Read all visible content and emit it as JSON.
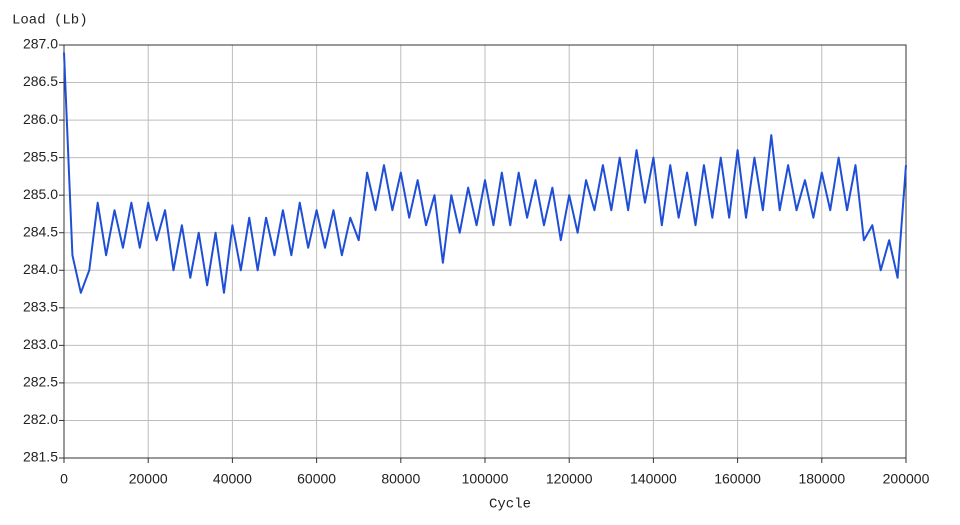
{
  "chart_data": {
    "type": "line",
    "ylabel": "Load (Lb)",
    "xlabel": "Cycle",
    "x": [
      0,
      2000,
      4000,
      6000,
      8000,
      10000,
      12000,
      14000,
      16000,
      18000,
      20000,
      22000,
      24000,
      26000,
      28000,
      30000,
      32000,
      34000,
      36000,
      38000,
      40000,
      42000,
      44000,
      46000,
      48000,
      50000,
      52000,
      54000,
      56000,
      58000,
      60000,
      62000,
      64000,
      66000,
      68000,
      70000,
      72000,
      74000,
      76000,
      78000,
      80000,
      82000,
      84000,
      86000,
      88000,
      90000,
      92000,
      94000,
      96000,
      98000,
      100000,
      102000,
      104000,
      106000,
      108000,
      110000,
      112000,
      114000,
      116000,
      118000,
      120000,
      122000,
      124000,
      126000,
      128000,
      130000,
      132000,
      134000,
      136000,
      138000,
      140000,
      142000,
      144000,
      146000,
      148000,
      150000,
      152000,
      154000,
      156000,
      158000,
      160000,
      162000,
      164000,
      166000,
      168000,
      170000,
      172000,
      174000,
      176000,
      178000,
      180000,
      182000,
      184000,
      186000,
      188000,
      190000,
      192000,
      194000,
      196000,
      198000,
      200000
    ],
    "series": [
      {
        "name": "Load",
        "color": "#1f4fd6",
        "values": [
          286.9,
          284.2,
          283.7,
          284.0,
          284.9,
          284.2,
          284.8,
          284.3,
          284.9,
          284.3,
          284.9,
          284.4,
          284.8,
          284.0,
          284.6,
          283.9,
          284.5,
          283.8,
          284.5,
          283.7,
          284.6,
          284.0,
          284.7,
          284.0,
          284.7,
          284.2,
          284.8,
          284.2,
          284.9,
          284.3,
          284.8,
          284.3,
          284.8,
          284.2,
          284.7,
          284.4,
          285.3,
          284.8,
          285.4,
          284.8,
          285.3,
          284.7,
          285.2,
          284.6,
          285.0,
          284.1,
          285.0,
          284.5,
          285.1,
          284.6,
          285.2,
          284.6,
          285.3,
          284.6,
          285.3,
          284.7,
          285.2,
          284.6,
          285.1,
          284.4,
          285.0,
          284.5,
          285.2,
          284.8,
          285.4,
          284.8,
          285.5,
          284.8,
          285.6,
          284.9,
          285.5,
          284.6,
          285.4,
          284.7,
          285.3,
          284.6,
          285.4,
          284.7,
          285.5,
          284.7,
          285.6,
          284.7,
          285.5,
          284.8,
          285.8,
          284.8,
          285.4,
          284.8,
          285.2,
          284.7,
          285.3,
          284.8,
          285.5,
          284.8,
          285.4,
          284.4,
          284.6,
          284.0,
          284.4,
          283.9,
          285.4
        ]
      }
    ],
    "xlim": [
      0,
      200000
    ],
    "xticks": [
      0,
      20000,
      40000,
      60000,
      80000,
      100000,
      120000,
      140000,
      160000,
      180000,
      200000
    ],
    "ylim": [
      281.5,
      287.0
    ],
    "yticks": [
      281.5,
      {
        "value": 282,
        "label": "282.0"
      },
      282.5,
      {
        "value": 283,
        "label": "283.0"
      },
      283.5,
      {
        "value": 284,
        "label": "284.0"
      },
      284.5,
      {
        "value": 285,
        "label": "285.0"
      },
      285.5,
      {
        "value": 286,
        "label": "286.0"
      },
      286.5,
      {
        "value": 287,
        "label": "287.0"
      }
    ],
    "grid": true
  }
}
